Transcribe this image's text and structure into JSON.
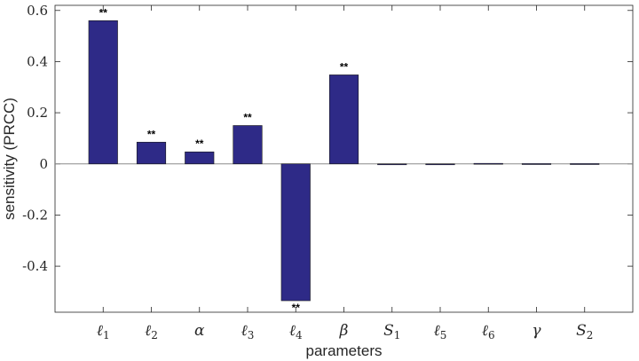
{
  "chart_data": {
    "type": "bar",
    "categories": [
      "ℓ",
      "ℓ",
      "α",
      "ℓ",
      "ℓ",
      "β",
      "S",
      "ℓ",
      "ℓ",
      "γ",
      "S"
    ],
    "category_subscripts": [
      "1",
      "2",
      "",
      "3",
      "4",
      "",
      "1",
      "5",
      "6",
      "",
      "2"
    ],
    "values": [
      0.56,
      0.085,
      0.047,
      0.15,
      -0.535,
      0.348,
      -0.002,
      -0.003,
      0.002,
      0.001,
      0.001
    ],
    "significance": [
      "**",
      "**",
      "**",
      "**",
      "**",
      "**",
      "",
      "",
      "",
      "",
      ""
    ],
    "xlabel": "parameters",
    "ylabel": "sensitivity (PRCC)",
    "ylim": [
      -0.58,
      0.62
    ],
    "yticks": [
      -0.4,
      -0.2,
      0,
      0.2,
      0.4,
      0.6
    ],
    "ytick_labels": [
      "-0.4",
      "-0.2",
      "0",
      "0.2",
      "0.4",
      "0.6"
    ],
    "grid": false,
    "bar_color": "#2e2a87",
    "zero_line_color": "#8c8c8c",
    "axis_color": "#262626"
  }
}
